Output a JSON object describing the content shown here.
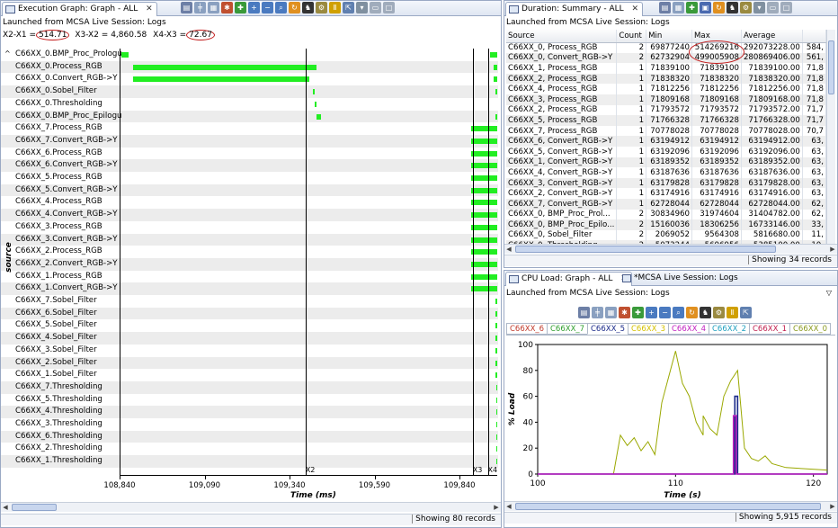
{
  "left": {
    "tab_title": "Execution Graph: Graph - ALL",
    "launched": "Launched from MCSA Live Session: Logs",
    "measure": {
      "x2x1_label": "X2-X1 =",
      "x2x1": "514.71",
      "x3x2": "X3-X2 = 4,860.58",
      "x4x3_label": "X4-X3 =",
      "x4x3": "72.67"
    },
    "rows": [
      {
        "label": "C66XX_0.BMP_Proc_Prologue",
        "bars": [
          [
            0,
            0.02
          ],
          [
            0.98,
            1.0
          ]
        ]
      },
      {
        "label": "C66XX_0.Process_RGB",
        "bars": [
          [
            0.03,
            0.52
          ],
          [
            0.99,
            1.0
          ]
        ]
      },
      {
        "label": "C66XX_0.Convert_RGB->Y",
        "bars": [
          [
            0.03,
            0.5
          ],
          [
            0.99,
            1.0
          ]
        ]
      },
      {
        "label": "C66XX_0.Sobel_Filter",
        "bars": [
          [
            0.51,
            0.515
          ],
          [
            0.995,
            1.0
          ]
        ]
      },
      {
        "label": "C66XX_0.Thresholding",
        "bars": [
          [
            0.515,
            0.52
          ]
        ]
      },
      {
        "label": "C66XX_0.BMP_Proc_Epilogue",
        "bars": [
          [
            0.52,
            0.53
          ],
          [
            0.995,
            1.0
          ]
        ]
      },
      {
        "label": "C66XX_7.Process_RGB",
        "bars": [
          [
            0.93,
            1.0
          ]
        ]
      },
      {
        "label": "C66XX_7.Convert_RGB->Y",
        "bars": [
          [
            0.93,
            1.0
          ]
        ]
      },
      {
        "label": "C66XX_6.Process_RGB",
        "bars": [
          [
            0.93,
            1.0
          ]
        ]
      },
      {
        "label": "C66XX_6.Convert_RGB->Y",
        "bars": [
          [
            0.93,
            1.0
          ]
        ]
      },
      {
        "label": "C66XX_5.Process_RGB",
        "bars": [
          [
            0.93,
            1.0
          ]
        ]
      },
      {
        "label": "C66XX_5.Convert_RGB->Y",
        "bars": [
          [
            0.93,
            1.0
          ]
        ]
      },
      {
        "label": "C66XX_4.Process_RGB",
        "bars": [
          [
            0.93,
            1.0
          ]
        ]
      },
      {
        "label": "C66XX_4.Convert_RGB->Y",
        "bars": [
          [
            0.93,
            1.0
          ]
        ]
      },
      {
        "label": "C66XX_3.Process_RGB",
        "bars": [
          [
            0.93,
            1.0
          ]
        ]
      },
      {
        "label": "C66XX_3.Convert_RGB->Y",
        "bars": [
          [
            0.93,
            1.0
          ]
        ]
      },
      {
        "label": "C66XX_2.Process_RGB",
        "bars": [
          [
            0.93,
            1.0
          ]
        ]
      },
      {
        "label": "C66XX_2.Convert_RGB->Y",
        "bars": [
          [
            0.93,
            1.0
          ]
        ]
      },
      {
        "label": "C66XX_1.Process_RGB",
        "bars": [
          [
            0.93,
            1.0
          ]
        ]
      },
      {
        "label": "C66XX_1.Convert_RGB->Y",
        "bars": [
          [
            0.93,
            1.0
          ]
        ]
      },
      {
        "label": "C66XX_7.Sobel_Filter",
        "bars": [
          [
            0.995,
            1.0
          ]
        ]
      },
      {
        "label": "C66XX_6.Sobel_Filter",
        "bars": [
          [
            0.995,
            1.0
          ]
        ]
      },
      {
        "label": "C66XX_5.Sobel_Filter",
        "bars": [
          [
            0.995,
            1.0
          ]
        ]
      },
      {
        "label": "C66XX_4.Sobel_Filter",
        "bars": [
          [
            0.995,
            1.0
          ]
        ]
      },
      {
        "label": "C66XX_3.Sobel_Filter",
        "bars": [
          [
            0.995,
            1.0
          ]
        ]
      },
      {
        "label": "C66XX_2.Sobel_Filter",
        "bars": [
          [
            0.995,
            1.0
          ]
        ]
      },
      {
        "label": "C66XX_1.Sobel_Filter",
        "bars": [
          [
            0.995,
            1.0
          ]
        ]
      },
      {
        "label": "C66XX_7.Thresholding",
        "bars": [
          [
            0.997,
            1.0
          ]
        ]
      },
      {
        "label": "C66XX_5.Thresholding",
        "bars": [
          [
            0.997,
            1.0
          ]
        ]
      },
      {
        "label": "C66XX_4.Thresholding",
        "bars": [
          [
            0.997,
            1.0
          ]
        ]
      },
      {
        "label": "C66XX_3.Thresholding",
        "bars": [
          [
            0.997,
            1.0
          ]
        ]
      },
      {
        "label": "C66XX_6.Thresholding",
        "bars": [
          [
            0.997,
            1.0
          ]
        ]
      },
      {
        "label": "C66XX_2.Thresholding",
        "bars": [
          [
            0.997,
            1.0
          ]
        ]
      },
      {
        "label": "C66XX_1.Thresholding",
        "bars": [
          [
            0.997,
            1.0
          ]
        ]
      }
    ],
    "axis_ticks": [
      "108,840",
      "109,090",
      "109,340",
      "109,590",
      "109,840"
    ],
    "axis_title": "Time (ms)",
    "yaxis_title": "source",
    "markers": [
      "X1",
      "X2",
      "X3",
      "X4"
    ],
    "status": "Showing 80 records"
  },
  "duration": {
    "tab_title": "Duration: Summary - ALL",
    "launched": "Launched from MCSA Live Session: Logs",
    "columns": [
      "Source",
      "Count",
      "Min",
      "Max",
      "Average",
      ""
    ],
    "rows": [
      [
        "C66XX_0, Process_RGB",
        "2",
        "69877240",
        "514269216",
        "292073228.00",
        "584,"
      ],
      [
        "C66XX_0, Convert_RGB->Y",
        "2",
        "62732904",
        "499005908",
        "280869406.00",
        "561,"
      ],
      [
        "C66XX_1, Process_RGB",
        "1",
        "71839100",
        "71839100",
        "71839100.00",
        "71,8"
      ],
      [
        "C66XX_2, Process_RGB",
        "1",
        "71838320",
        "71838320",
        "71838320.00",
        "71,8"
      ],
      [
        "C66XX_4, Process_RGB",
        "1",
        "71812256",
        "71812256",
        "71812256.00",
        "71,8"
      ],
      [
        "C66XX_3, Process_RGB",
        "1",
        "71809168",
        "71809168",
        "71809168.00",
        "71,8"
      ],
      [
        "C66XX_2, Process_RGB",
        "1",
        "71793572",
        "71793572",
        "71793572.00",
        "71,7"
      ],
      [
        "C66XX_5, Process_RGB",
        "1",
        "71766328",
        "71766328",
        "71766328.00",
        "71,7"
      ],
      [
        "C66XX_7, Process_RGB",
        "1",
        "70778028",
        "70778028",
        "70778028.00",
        "70,7"
      ],
      [
        "C66XX_6, Convert_RGB->Y",
        "1",
        "63194912",
        "63194912",
        "63194912.00",
        "63,"
      ],
      [
        "C66XX_5, Convert_RGB->Y",
        "1",
        "63192096",
        "63192096",
        "63192096.00",
        "63,"
      ],
      [
        "C66XX_1, Convert_RGB->Y",
        "1",
        "63189352",
        "63189352",
        "63189352.00",
        "63,"
      ],
      [
        "C66XX_4, Convert_RGB->Y",
        "1",
        "63187636",
        "63187636",
        "63187636.00",
        "63,"
      ],
      [
        "C66XX_3, Convert_RGB->Y",
        "1",
        "63179828",
        "63179828",
        "63179828.00",
        "63,"
      ],
      [
        "C66XX_2, Convert_RGB->Y",
        "1",
        "63174916",
        "63174916",
        "63174916.00",
        "63,"
      ],
      [
        "C66XX_7, Convert_RGB->Y",
        "1",
        "62728044",
        "62728044",
        "62728044.00",
        "62,"
      ],
      [
        "C66XX_0, BMP_Proc_Prol...",
        "2",
        "30834960",
        "31974604",
        "31404782.00",
        "62,"
      ],
      [
        "C66XX_0, BMP_Proc_Epilo...",
        "2",
        "15160036",
        "18306256",
        "16733146.00",
        "33,"
      ],
      [
        "C66XX_0, Sobel_Filter",
        "2",
        "2069052",
        "9564308",
        "5816680.00",
        "11,"
      ],
      [
        "C66XX_0, Thresholding",
        "2",
        "5073244",
        "5696956",
        "5385100.00",
        "10,"
      ]
    ],
    "status": "Showing 34 records"
  },
  "cpu": {
    "tab_title": "CPU Load: Graph - ALL",
    "tab2_title": "*MCSA Live Session: Logs",
    "launched": "Launched from MCSA Live Session: Logs",
    "cores": [
      {
        "label": "C66XX_6",
        "color": "#c0392b"
      },
      {
        "label": "C66XX_7",
        "color": "#2e9e2e"
      },
      {
        "label": "C66XX_5",
        "color": "#1a2a8a"
      },
      {
        "label": "C66XX_3",
        "color": "#d4c000"
      },
      {
        "label": "C66XX_4",
        "color": "#c020c0"
      },
      {
        "label": "C66XX_2",
        "color": "#20a0c0"
      },
      {
        "label": "C66XX_1",
        "color": "#c02050"
      },
      {
        "label": "C66XX_0",
        "color": "#8a9a20"
      }
    ],
    "status": "Showing 5,915 records"
  },
  "chart_data": {
    "type": "line",
    "xlabel": "Time (s)",
    "ylabel": "% Load",
    "xlim": [
      100,
      121
    ],
    "ylim": [
      0,
      100
    ],
    "xticks": [
      100,
      110,
      120
    ],
    "yticks": [
      0,
      20,
      40,
      60,
      80,
      100
    ],
    "series": [
      {
        "color": "#9aa800",
        "x": [
          100,
          104,
          105.5,
          106,
          106.5,
          107,
          107.5,
          108,
          108.5,
          109,
          109.5,
          110,
          110.5,
          111,
          111.5,
          112,
          112,
          112.5,
          113,
          113.5,
          114,
          114.5,
          115,
          115.5,
          116,
          116.5,
          117,
          118,
          121
        ],
        "y": [
          0,
          0,
          0,
          30,
          22,
          28,
          18,
          25,
          15,
          55,
          75,
          95,
          70,
          60,
          40,
          30,
          45,
          35,
          30,
          60,
          72,
          80,
          20,
          12,
          10,
          14,
          8,
          5,
          3
        ]
      },
      {
        "color": "#1a2a8a",
        "x": [
          100,
          114.3,
          114.3,
          114.5,
          114.5,
          121
        ],
        "y": [
          0,
          0,
          60,
          60,
          0,
          0
        ]
      },
      {
        "color": "#c020c0",
        "x": [
          100,
          114.2,
          114.2,
          114.4,
          114.4,
          121
        ],
        "y": [
          0,
          0,
          45,
          45,
          0,
          0
        ]
      }
    ]
  }
}
